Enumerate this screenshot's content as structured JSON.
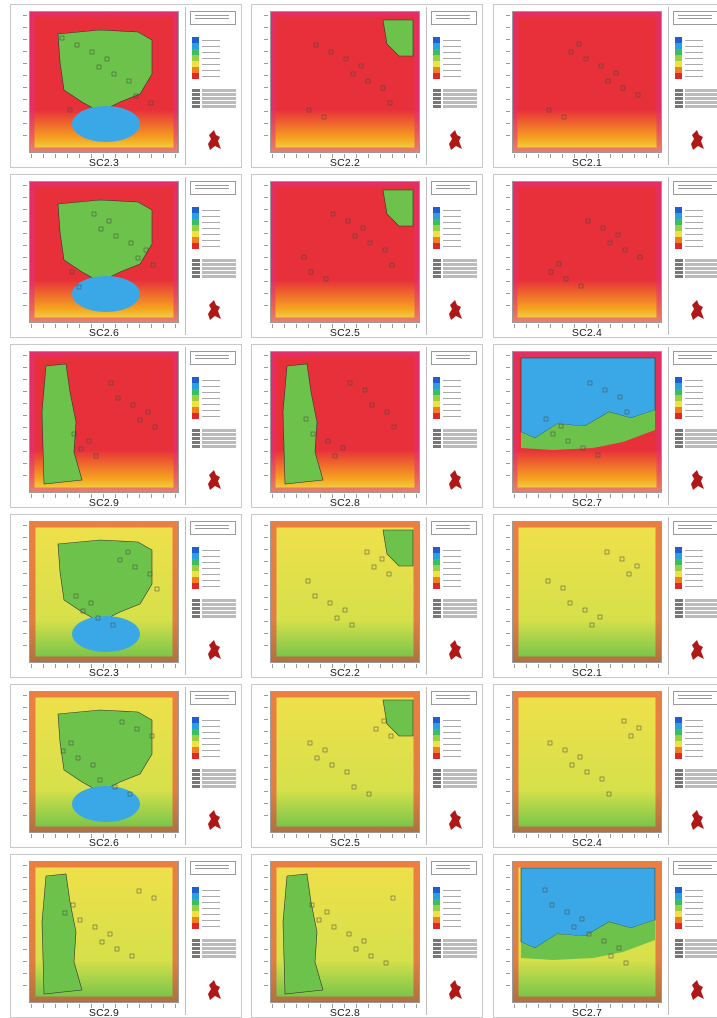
{
  "panels": [
    {
      "caption": "SC2.3",
      "scheme": "red",
      "zones": [
        "green-large",
        "blue-low"
      ]
    },
    {
      "caption": "SC2.2",
      "scheme": "red",
      "zones": [
        "green-corner"
      ]
    },
    {
      "caption": "SC2.1",
      "scheme": "red",
      "zones": []
    },
    {
      "caption": "SC2.6",
      "scheme": "red",
      "zones": [
        "green-large",
        "blue-low"
      ]
    },
    {
      "caption": "SC2.5",
      "scheme": "red",
      "zones": [
        "green-corner"
      ]
    },
    {
      "caption": "SC2.4",
      "scheme": "red",
      "zones": []
    },
    {
      "caption": "SC2.9",
      "scheme": "red",
      "zones": [
        "green-left"
      ]
    },
    {
      "caption": "SC2.8",
      "scheme": "red",
      "zones": [
        "green-left"
      ]
    },
    {
      "caption": "SC2.7",
      "scheme": "red",
      "zones": [
        "blue-top"
      ]
    },
    {
      "caption": "SC2.3",
      "scheme": "yellow",
      "zones": [
        "green-large",
        "blue-low"
      ]
    },
    {
      "caption": "SC2.2",
      "scheme": "yellow",
      "zones": [
        "green-corner"
      ]
    },
    {
      "caption": "SC2.1",
      "scheme": "yellow",
      "zones": []
    },
    {
      "caption": "SC2.6",
      "scheme": "yellow",
      "zones": [
        "green-large",
        "blue-low"
      ]
    },
    {
      "caption": "SC2.5",
      "scheme": "yellow",
      "zones": [
        "green-corner"
      ]
    },
    {
      "caption": "SC2.4",
      "scheme": "yellow",
      "zones": []
    },
    {
      "caption": "SC2.9",
      "scheme": "yellow",
      "zones": [
        "green-left"
      ]
    },
    {
      "caption": "SC2.8",
      "scheme": "yellow",
      "zones": [
        "green-left"
      ]
    },
    {
      "caption": "SC2.7",
      "scheme": "yellow",
      "zones": [
        "blue-top"
      ]
    }
  ],
  "colors": {
    "red": "#e8303a",
    "magenta": "#e0308a",
    "yellow": "#f0e04a",
    "orange": "#f5a020",
    "green": "#6cc24a",
    "blue": "#3aa8e6",
    "legend_scale": [
      "#1e5fd0",
      "#2aa0e0",
      "#38c060",
      "#9ad040",
      "#f0e040",
      "#f08020",
      "#e02828"
    ]
  }
}
